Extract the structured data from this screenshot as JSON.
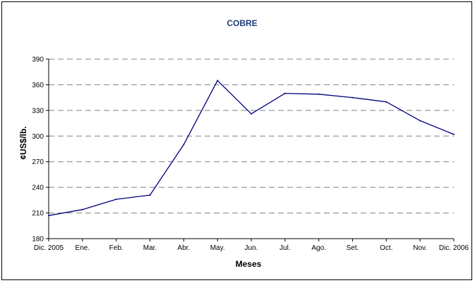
{
  "chart_data": {
    "type": "line",
    "title": "COBRE",
    "xlabel": "Meses",
    "ylabel": "¢US$/lb.",
    "categories": [
      "Dic. 2005",
      "Ene.",
      "Feb.",
      "Mar.",
      "Abr.",
      "May.",
      "Jun.",
      "Jul.",
      "Ago.",
      "Set.",
      "Oct.",
      "Nov.",
      "Dic. 2006"
    ],
    "series": [
      {
        "values": [
          207,
          214,
          226,
          231,
          290,
          365,
          326,
          350,
          349,
          345,
          340,
          318,
          302
        ]
      }
    ],
    "ylim": [
      180,
      390
    ],
    "yticks": [
      180,
      210,
      240,
      270,
      300,
      330,
      360,
      390
    ],
    "grid": "horizontal dashed",
    "colors": {
      "line": "#000080",
      "title": "#1f3a7a",
      "grid": "#808080",
      "axis": "#000000"
    }
  }
}
